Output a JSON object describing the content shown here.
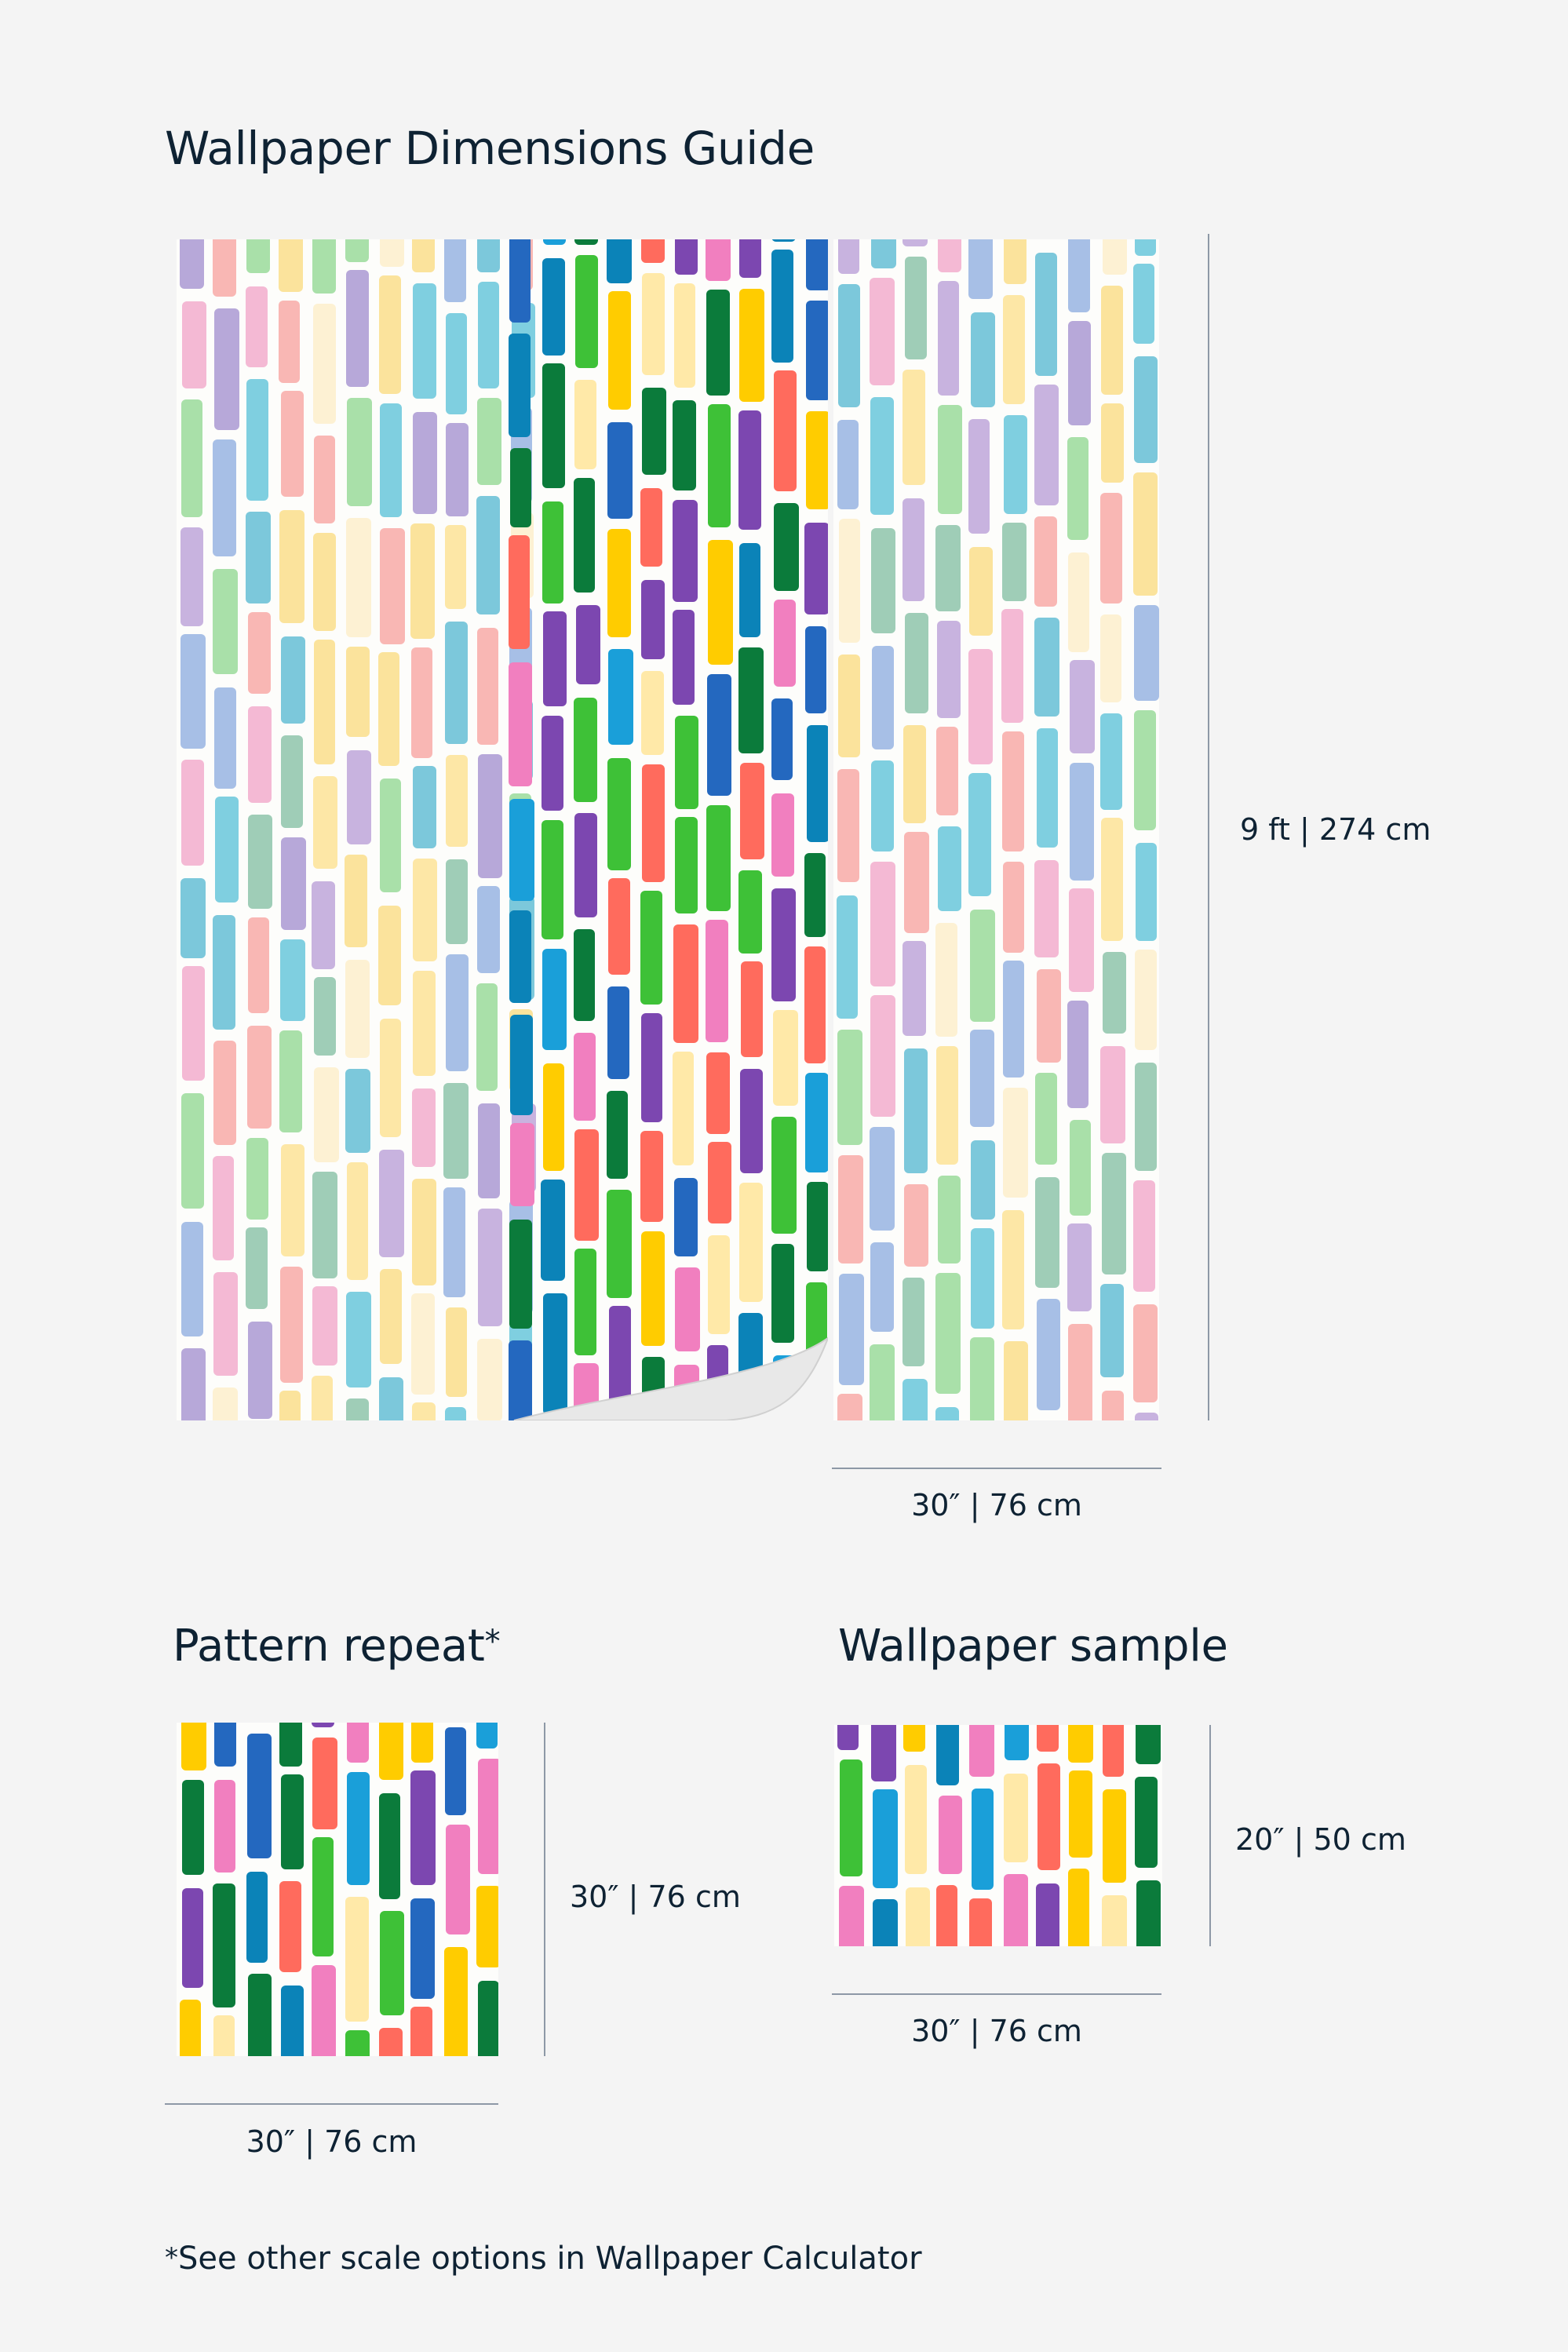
{
  "title": "Wallpaper Dimensions Guide",
  "main_panel": {
    "height_label": "9 ft | 274 cm",
    "width_label": "30″ | 76 cm"
  },
  "pattern_repeat": {
    "heading": "Pattern repeat",
    "heading_mark": "*",
    "height_label": "30″ | 76 cm",
    "width_label": "30″ | 76 cm"
  },
  "sample": {
    "heading": "Wallpaper sample",
    "height_label": "20″ | 50 cm",
    "width_label": "30″ | 76 cm"
  },
  "footnote": {
    "mark": "*",
    "text": "See other scale options in Wallpaper Calculator"
  },
  "colors": {
    "pastel": [
      "#fbe39c",
      "#7fcfe0",
      "#b7a8d9",
      "#a9e0a9",
      "#f4b9d4",
      "#a7bfe6",
      "#9fcdb7",
      "#fde7a6",
      "#f9b7b4",
      "#c8b3df",
      "#7cc8db",
      "#fdf1d3"
    ],
    "vivid": [
      "#ffcc00",
      "#0b83b8",
      "#7c47b0",
      "#3ec137",
      "#f17fbf",
      "#2468bf",
      "#0b7b3b",
      "#ff6b5d",
      "#1a9fd9",
      "#ffe9a8"
    ]
  }
}
